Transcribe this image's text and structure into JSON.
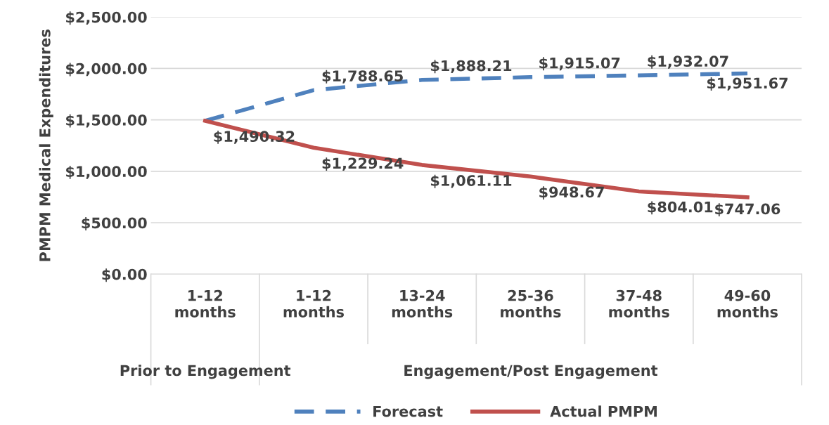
{
  "chart_data": {
    "type": "line",
    "ylabel": "PMPM Medical Expenditures",
    "categories": [
      "1-12\nmonths",
      "1-12\nmonths",
      "13-24\nmonths",
      "25-36\nmonths",
      "37-48\nmonths",
      "49-60\nmonths"
    ],
    "series": [
      {
        "name": "Forecast",
        "color": "#4f81bd",
        "line_style": "dashed",
        "values": [
          1490.32,
          1788.65,
          1888.21,
          1915.07,
          1932.07,
          1951.67
        ],
        "value_labels": [
          null,
          "$1,788.65",
          "$1,888.21",
          "$1,915.07",
          "$1,932.07",
          "$1,951.67"
        ]
      },
      {
        "name": "Actual PMPM",
        "color": "#c0504d",
        "line_style": "solid",
        "values": [
          1490.32,
          1229.24,
          1061.11,
          948.67,
          804.01,
          747.06
        ],
        "value_labels": [
          "$1,490.32",
          "$1,229.24",
          "$1,061.11",
          "$948.67",
          "$804.01",
          "$747.06"
        ]
      }
    ],
    "annotations": [
      "Prior to Engagement",
      "Engagement/Post Engagement"
    ],
    "ylim": [
      0,
      2500
    ],
    "yticks": [
      {
        "value": 0,
        "label": "$0.00"
      },
      {
        "value": 500,
        "label": "$500.00"
      },
      {
        "value": 1000,
        "label": "$1,000.00"
      },
      {
        "value": 1500,
        "label": "$1,500.00"
      },
      {
        "value": 2000,
        "label": "$2,000.00"
      },
      {
        "value": 2500,
        "label": "$2,500.00"
      }
    ],
    "grid": "y",
    "legend": "bottom",
    "marker": "none"
  }
}
